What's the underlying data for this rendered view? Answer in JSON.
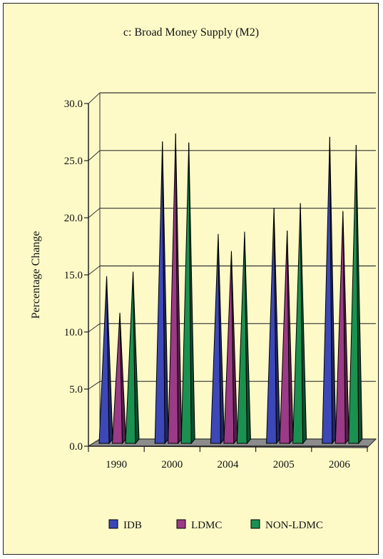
{
  "chart_data": {
    "type": "bar",
    "title": "c: Broad Money Supply (M2)",
    "xlabel": "",
    "ylabel": "Percentage Change",
    "categories": [
      "1990",
      "2000",
      "2004",
      "2005",
      "2006"
    ],
    "series": [
      {
        "name": "IDB",
        "values": [
          15.0,
          26.8,
          18.7,
          21.0,
          27.2
        ],
        "color": "#3c48b8"
      },
      {
        "name": "LDMC",
        "values": [
          11.8,
          27.5,
          17.2,
          19.0,
          20.7
        ],
        "color": "#9b3a86"
      },
      {
        "name": "NON-LDMC",
        "values": [
          15.4,
          26.7,
          18.9,
          21.4,
          26.5
        ],
        "color": "#1a9151"
      }
    ],
    "ylim": [
      0,
      30
    ],
    "yticks": [
      "0.0",
      "5.0",
      "10.0",
      "15.0",
      "20.0",
      "25.0",
      "30.0"
    ],
    "grid": true,
    "legend_position": "bottom",
    "background_color": "#fdfac8",
    "floor_color": "#8c8c8c"
  }
}
